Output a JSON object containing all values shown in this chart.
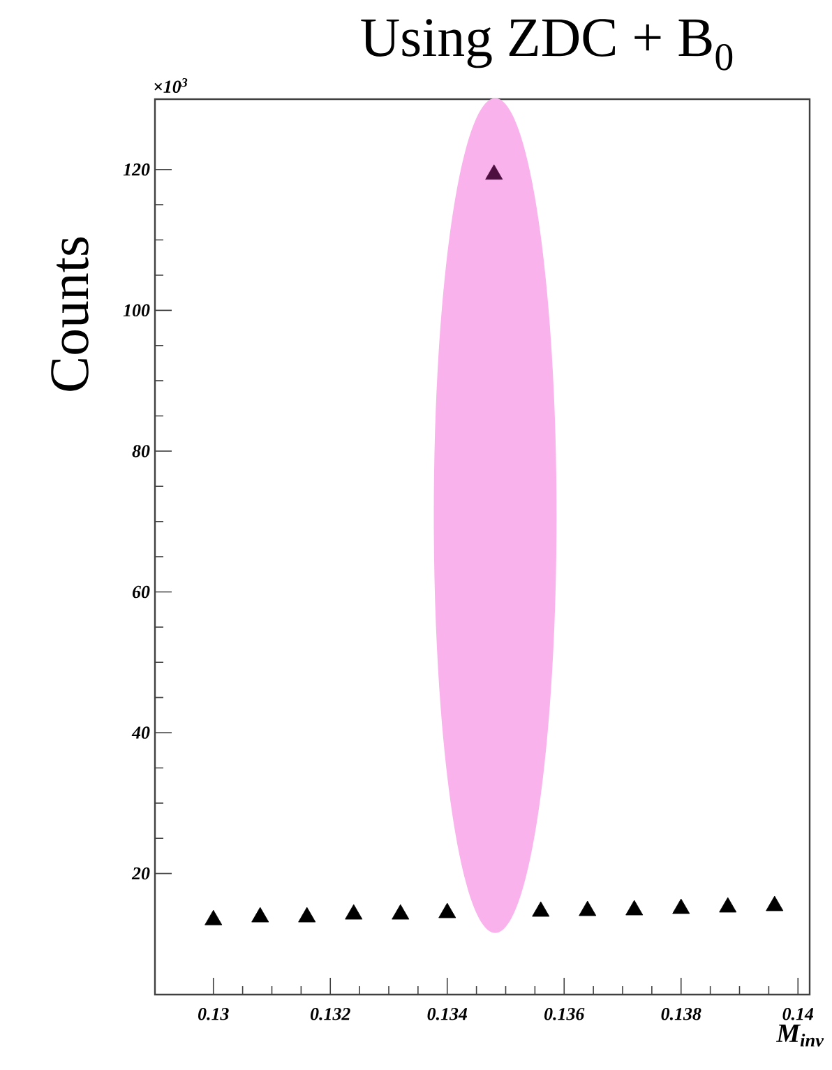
{
  "chart_data": {
    "type": "scatter",
    "title": "Using ZDC + B$_{0}$",
    "xlabel": "M$_{inv}$",
    "ylabel": "Counts",
    "annotations": [
      "×10$^{3}$"
    ],
    "x": [
      0.13,
      0.1308,
      0.1316,
      0.1324,
      0.1332,
      0.134,
      0.1348,
      0.1356,
      0.1364,
      0.1372,
      0.138,
      0.1388,
      0.1396
    ],
    "series": [
      {
        "color": "#000000",
        "colors": [
          null,
          null,
          null,
          null,
          null,
          null,
          "#4d0f40",
          null,
          null,
          null,
          null,
          null,
          null
        ],
        "values": [
          13.4,
          13.8,
          13.8,
          14.2,
          14.2,
          14.4,
          119.3,
          14.6,
          14.7,
          14.8,
          15.0,
          15.2,
          15.4
        ]
      }
    ],
    "xlim": [
      0.129,
      0.1402
    ],
    "ylim": [
      2.8,
      130
    ],
    "xticks": [
      0.13,
      0.132,
      0.134,
      0.136,
      0.138,
      0.14
    ],
    "yticks": [
      20,
      40,
      60,
      80,
      100,
      120
    ],
    "marker": "triangle",
    "grid": false
  }
}
